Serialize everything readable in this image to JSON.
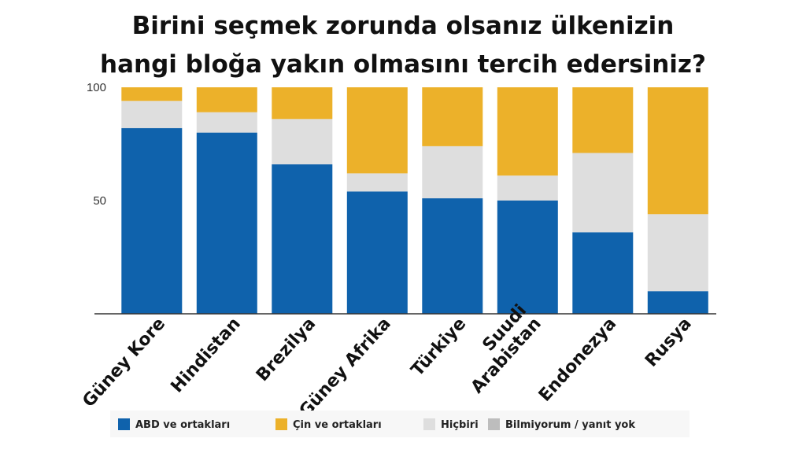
{
  "colors": {
    "abd": "#0f62ac",
    "cin": "#ecb12a",
    "hicbiri": "#dedede",
    "bilmiyorum": "#bdbdbd"
  },
  "chart_data": {
    "type": "bar",
    "stacked": true,
    "title": [
      "Birini seçmek zorunda olsanız ülkenizin",
      "hangi bloğa yakın olmasını tercih edersiniz?"
    ],
    "categories": [
      "Güney Kore",
      "Hindistan",
      "Brezilya",
      "Güney Afrika",
      "Türkiye",
      "Suudi Arabistan",
      "Endonezya",
      "Rusya"
    ],
    "category_lines": [
      [
        "Güney Kore"
      ],
      [
        "Hindistan"
      ],
      [
        "Brezilya"
      ],
      [
        "Güney Afrika"
      ],
      [
        "Türkiye"
      ],
      [
        "Suudi",
        "Arabistan"
      ],
      [
        "Endonezya"
      ],
      [
        "Rusya"
      ]
    ],
    "series": [
      {
        "name": "ABD ve ortakları",
        "color_key": "abd",
        "values": [
          82,
          80,
          66,
          54,
          51,
          50,
          36,
          10
        ]
      },
      {
        "name": "Hiçbiri",
        "color_key": "hicbiri",
        "values": [
          12,
          9,
          20,
          8,
          23,
          11,
          35,
          34
        ]
      },
      {
        "name": "Çin ve ortakları",
        "color_key": "cin",
        "values": [
          6,
          11,
          14,
          38,
          26,
          39,
          29,
          56
        ]
      }
    ],
    "legend": [
      {
        "label": "ABD ve ortakları",
        "color_key": "abd"
      },
      {
        "label": "Çin ve ortakları",
        "color_key": "cin"
      },
      {
        "label": "Hiçbiri",
        "color_key": "hicbiri"
      },
      {
        "label": "Bilmiyorum / yanıt yok",
        "color_key": "bilmiyorum"
      }
    ],
    "legend_position": "bottom",
    "yticks": [
      "100",
      "50"
    ],
    "ytick_values": [
      100,
      50
    ],
    "ylim": [
      0,
      100
    ],
    "grid": false
  }
}
